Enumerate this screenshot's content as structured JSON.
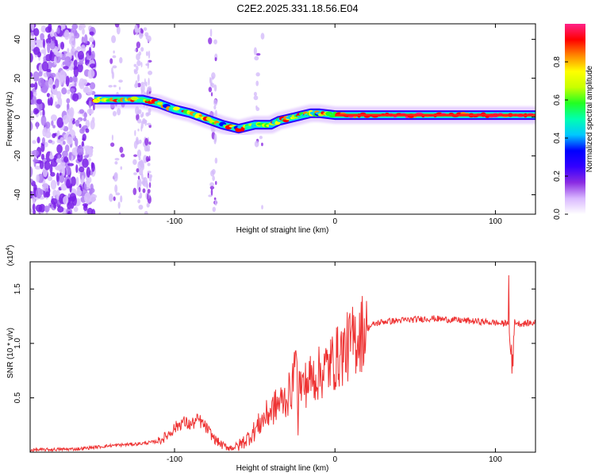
{
  "title": "C2E2.2025.331.18.56.E04",
  "chart_data": [
    {
      "type": "heatmap",
      "xlabel": "Height of straight line (km)",
      "ylabel": "Frequency (Hz)",
      "xlim": [
        -190,
        125
      ],
      "ylim": [
        -50,
        48
      ],
      "xticks": [
        -100,
        0,
        100
      ],
      "yticks": [
        -40,
        -20,
        0,
        20,
        40
      ],
      "colorbar": {
        "label": "Normalized spectral amplitude",
        "range": [
          0,
          1
        ],
        "ticks": [
          "0.0",
          "0.2",
          "0.4",
          "0.6",
          "0.8"
        ],
        "colors": [
          "#ffffff",
          "#d9b8ff",
          "#8a2be2",
          "#3300ff",
          "#0000ff",
          "#00c8ff",
          "#00ffb0",
          "#22ff22",
          "#c8ff00",
          "#ffff00",
          "#ff8800",
          "#ff0000",
          "#ff2288"
        ]
      },
      "ridge": {
        "x": [
          -150,
          -140,
          -130,
          -120,
          -110,
          -100,
          -90,
          -80,
          -70,
          -60,
          -50,
          -40,
          -35,
          -30,
          -25,
          -20,
          -15,
          -10,
          0,
          20,
          40,
          60,
          80,
          100,
          125
        ],
        "y": [
          9,
          9,
          9,
          9,
          7,
          4,
          2,
          -1,
          -4,
          -6,
          -4,
          -4,
          -2,
          -1,
          0,
          1,
          2,
          2,
          1,
          1,
          1,
          1,
          1,
          1,
          1
        ]
      }
    },
    {
      "type": "line",
      "xlabel": "Height of straight line (km)",
      "ylabel": "SNR (10 * v/v)",
      "multiplier": "(x10",
      "multiplier_exp": "4",
      "xlim": [
        -190,
        125
      ],
      "ylim": [
        0,
        1.75
      ],
      "xticks": [
        -100,
        0,
        100
      ],
      "yticks": [
        "0.5",
        "1.0",
        "1.5"
      ],
      "color": "#ee3333",
      "series": [
        {
          "x": [
            -190,
            -160,
            -140,
            -120,
            -110,
            -105,
            -100,
            -95,
            -90,
            -85,
            -80,
            -75,
            -70,
            -65,
            -60,
            -55,
            -50,
            -45,
            -40,
            -35,
            -30,
            -28,
            -25,
            -22,
            -20,
            -15,
            -10,
            -5,
            0,
            5,
            10,
            15,
            20,
            25,
            30,
            40,
            50,
            60,
            70,
            80,
            90,
            100,
            105,
            108,
            110,
            112,
            115,
            125
          ],
          "y": [
            0.02,
            0.03,
            0.06,
            0.08,
            0.1,
            0.15,
            0.22,
            0.28,
            0.25,
            0.3,
            0.22,
            0.12,
            0.06,
            0.04,
            0.06,
            0.12,
            0.2,
            0.3,
            0.38,
            0.45,
            0.5,
            0.55,
            0.7,
            0.62,
            0.6,
            0.68,
            0.72,
            0.78,
            0.85,
            0.92,
            1.0,
            1.08,
            1.14,
            1.18,
            1.2,
            1.21,
            1.22,
            1.23,
            1.22,
            1.21,
            1.2,
            1.19,
            1.18,
            1.2,
            0.85,
            1.2,
            1.18,
            1.19
          ]
        }
      ]
    }
  ]
}
